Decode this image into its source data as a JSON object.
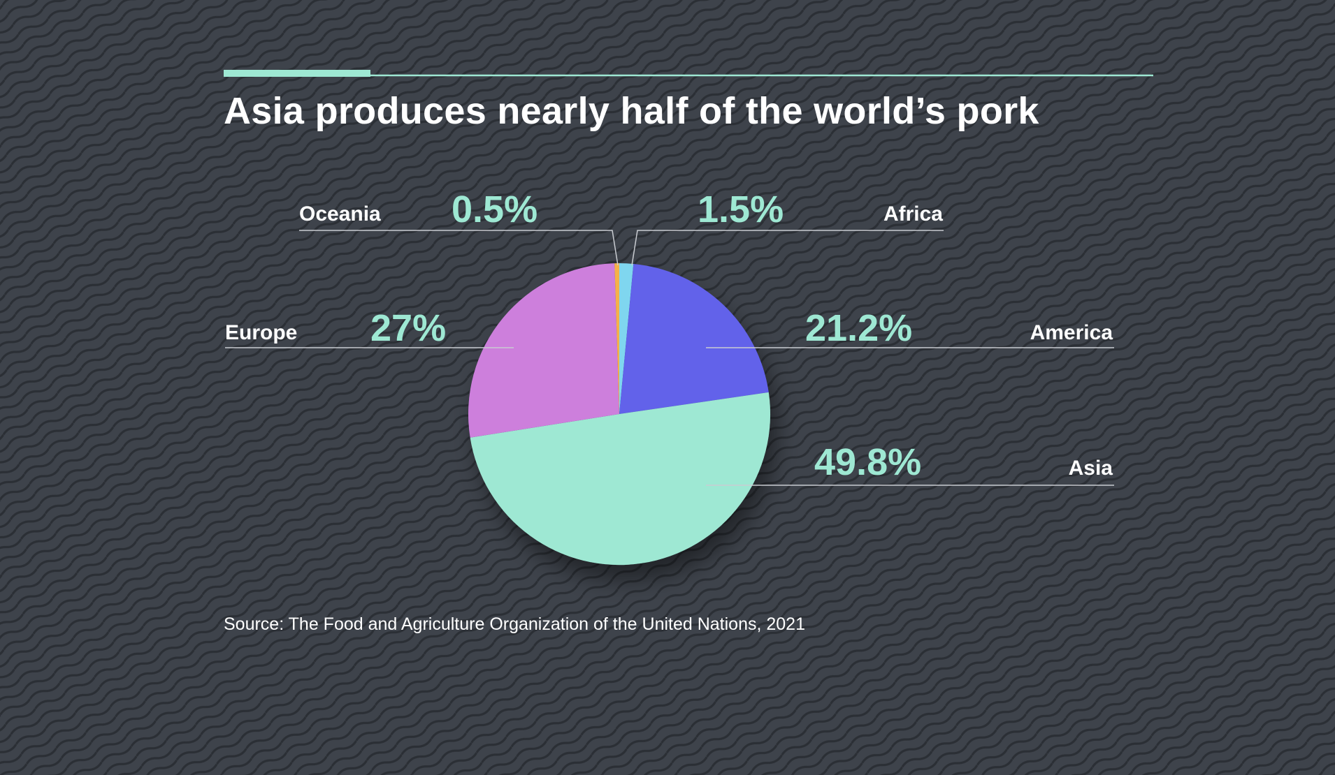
{
  "title": "Asia produces nearly half of the world’s pork",
  "source": "Source: The Food and Agriculture Organization of the United Nations, 2021",
  "colors": {
    "background": "#3e434b",
    "accent": "#9ee8d3",
    "text": "#ffffff",
    "leader_line": "#c9ccd1"
  },
  "chart_data": {
    "type": "pie",
    "title": "Asia produces nearly half of the world’s pork",
    "slices": [
      {
        "label": "Africa",
        "value": 1.5,
        "display": "1.5%",
        "color": "#7fd6ef"
      },
      {
        "label": "America",
        "value": 21.2,
        "display": "21.2%",
        "color": "#6262ea"
      },
      {
        "label": "Asia",
        "value": 49.8,
        "display": "49.8%",
        "color": "#9ee8d3"
      },
      {
        "label": "Europe",
        "value": 27,
        "display": "27%",
        "color": "#cd7fdc"
      },
      {
        "label": "Oceania",
        "value": 0.5,
        "display": "0.5%",
        "color": "#f5b14a"
      }
    ],
    "start": "12 o'clock",
    "direction": "clockwise"
  }
}
